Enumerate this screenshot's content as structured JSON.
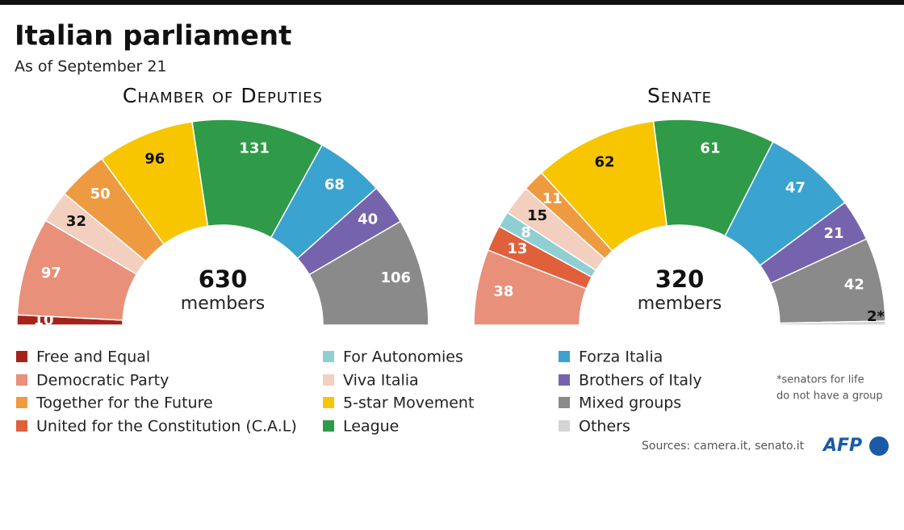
{
  "title": "Italian parliament",
  "subtitle": "As of September 21",
  "chart_data": [
    {
      "type": "half-donut",
      "title": "Chamber of Deputies",
      "categories": [
        "Free and Equal",
        "Democratic Party",
        "Viva Italia",
        "Together for the Future",
        "5-star Movement",
        "League",
        "Forza Italia",
        "Brothers of Italy",
        "Mixed groups"
      ],
      "values": [
        10,
        97,
        32,
        50,
        96,
        131,
        68,
        40,
        106
      ],
      "total": 630,
      "total_label": "members"
    },
    {
      "type": "half-donut",
      "title": "Senate",
      "categories": [
        "Democratic Party",
        "United for the Constitution (C.A.L)",
        "For Autonomies",
        "Viva Italia",
        "Together for the Future",
        "5-star Movement",
        "League",
        "Forza Italia",
        "Brothers of Italy",
        "Mixed groups",
        "Others"
      ],
      "values": [
        38,
        13,
        8,
        15,
        11,
        62,
        61,
        47,
        21,
        42,
        2
      ],
      "value_labels": [
        "38",
        "13",
        "8",
        "15",
        "11",
        "62",
        "61",
        "47",
        "21",
        "42",
        "2*"
      ],
      "total": 320,
      "total_label": "members"
    }
  ],
  "legend": [
    {
      "name": "Free and Equal",
      "color": "#a4241c"
    },
    {
      "name": "Democratic Party",
      "color": "#e8907a"
    },
    {
      "name": "Together for the Future",
      "color": "#ee9a40"
    },
    {
      "name": "United for the Constitution (C.A.L)",
      "color": "#e0603b"
    },
    {
      "name": "For Autonomies",
      "color": "#8fcfd3"
    },
    {
      "name": "Viva Italia",
      "color": "#f3cfc0"
    },
    {
      "name": "5-star Movement",
      "color": "#f7c600"
    },
    {
      "name": "League",
      "color": "#2f9a47"
    },
    {
      "name": "Forza Italia",
      "color": "#3aa3cf"
    },
    {
      "name": "Brothers of Italy",
      "color": "#7563ad"
    },
    {
      "name": "Mixed groups",
      "color": "#8a8a8a"
    },
    {
      "name": "Others",
      "color": "#d4d4d4"
    }
  ],
  "note": [
    "*senators for life",
    "do not have a group"
  ],
  "source": "Sources: camera.it, senato.it",
  "logo": "AFP"
}
